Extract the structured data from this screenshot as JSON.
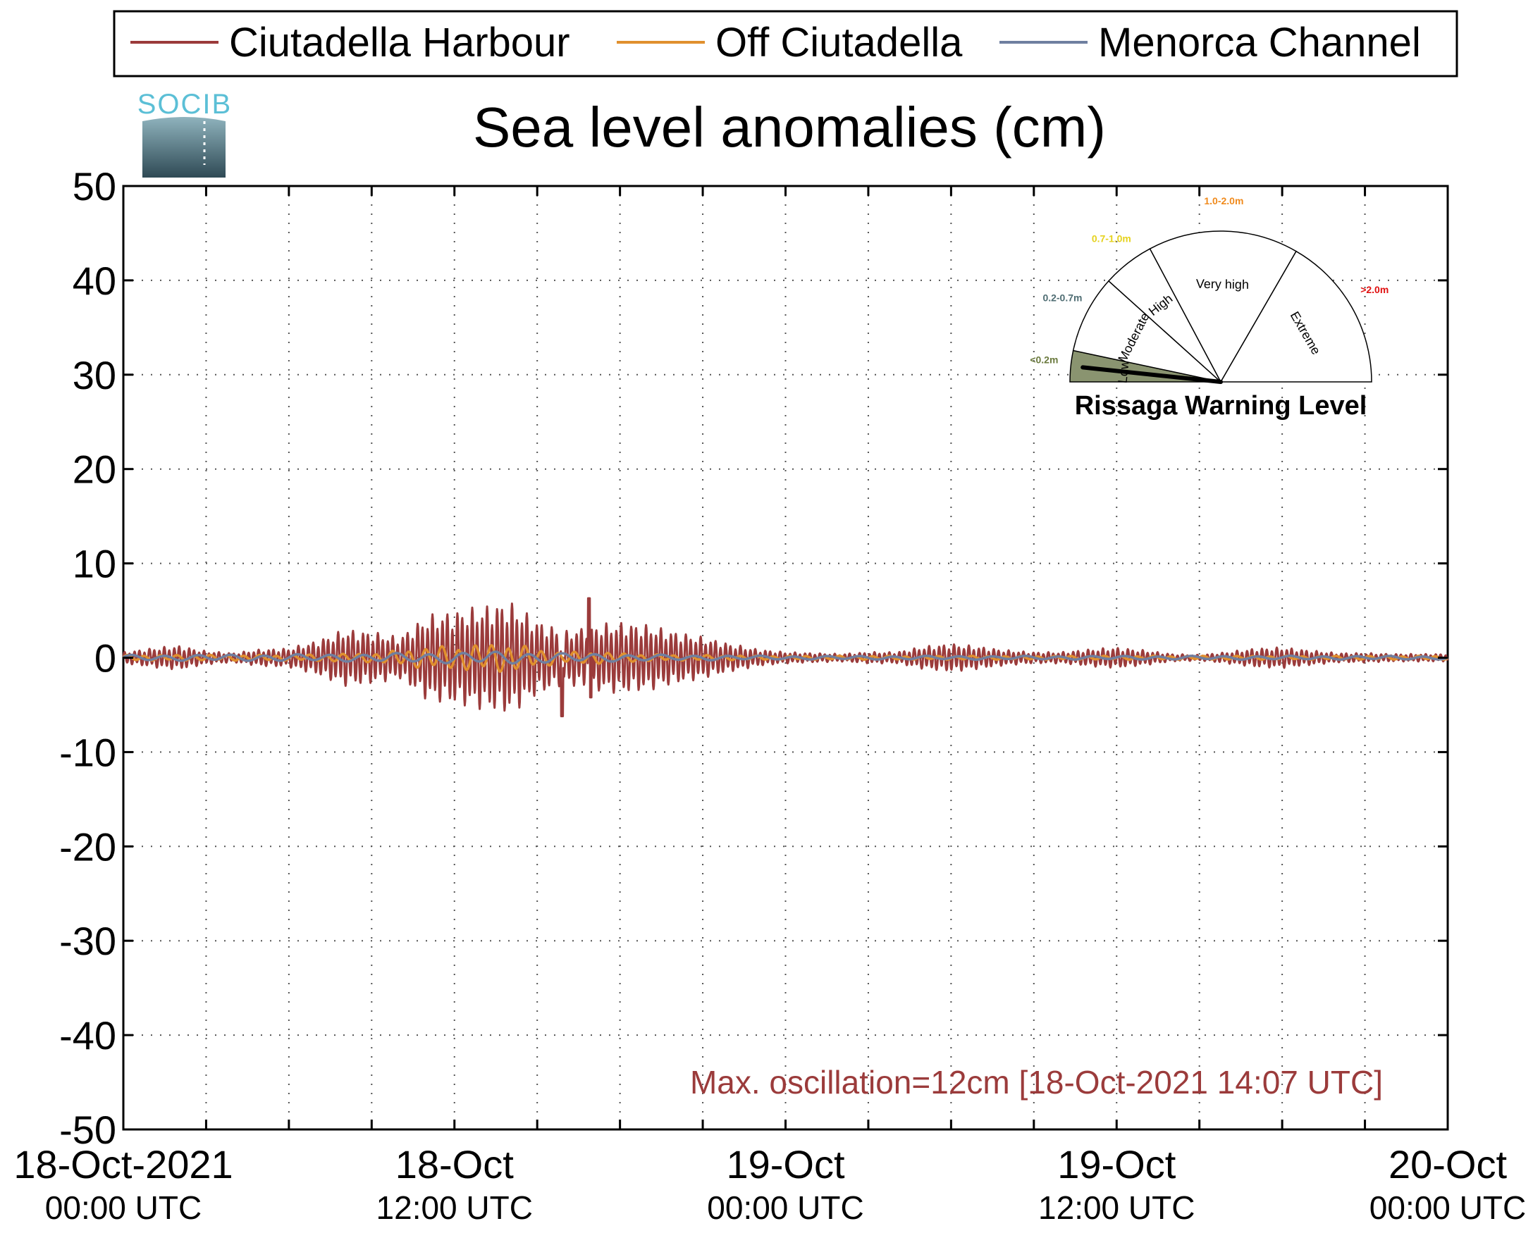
{
  "chart_data": {
    "type": "line",
    "title": "Sea level anomalies (cm)",
    "xlabel": "",
    "ylabel": "",
    "ylim": [
      -50,
      50
    ],
    "y_ticks": [
      50,
      40,
      30,
      20,
      10,
      0,
      -10,
      -20,
      -30,
      -40,
      -50
    ],
    "y_tick_labels": [
      "50",
      "40",
      "30",
      "20",
      "10",
      "0",
      "-10",
      "-20",
      "-30",
      "-40",
      "-50"
    ],
    "xlim_hours": [
      0,
      48
    ],
    "x_tick_labels": [
      {
        "hour": 0,
        "line1": "18-Oct-2021",
        "line2": "00:00 UTC"
      },
      {
        "hour": 12,
        "line1": "18-Oct",
        "line2": "12:00 UTC"
      },
      {
        "hour": 24,
        "line1": "19-Oct",
        "line2": "00:00 UTC"
      },
      {
        "hour": 36,
        "line1": "19-Oct",
        "line2": "12:00 UTC"
      },
      {
        "hour": 48,
        "line1": "20-Oct",
        "line2": "00:00 UTC"
      }
    ],
    "grid": true,
    "legend_position": "top",
    "series": [
      {
        "name": "Ciutadella Harbour",
        "color": "#9b3b3b",
        "amplitude_envelope": {
          "hours": [
            0,
            1,
            2,
            3,
            4,
            5,
            6,
            7,
            8,
            9,
            10,
            11,
            12,
            13,
            14,
            15,
            16,
            17,
            18,
            19,
            20,
            21,
            22,
            23,
            24,
            25,
            26,
            27,
            28,
            29,
            30,
            31,
            32,
            33,
            34,
            35,
            36,
            37,
            38,
            39,
            40,
            41,
            42,
            43,
            44,
            45,
            46,
            47,
            48
          ],
          "values": [
            0.6,
            1.0,
            1.3,
            0.7,
            0.5,
            0.9,
            1.0,
            1.8,
            3.0,
            2.8,
            2.2,
            4.5,
            5.0,
            5.5,
            6.0,
            4.0,
            2.8,
            3.5,
            3.8,
            3.5,
            2.8,
            2.2,
            1.5,
            0.9,
            0.6,
            0.5,
            0.4,
            0.6,
            0.6,
            1.2,
            1.5,
            1.2,
            0.8,
            0.6,
            0.6,
            0.9,
            1.1,
            0.8,
            0.4,
            0.3,
            0.6,
            1.0,
            1.1,
            0.8,
            0.5,
            0.5,
            0.4,
            0.4,
            0.4
          ]
        },
        "oscillation_period_hours": 0.18,
        "extremes": {
          "max": 6.3,
          "min": -6.2
        }
      },
      {
        "name": "Off Ciutadella",
        "color": "#e0902e",
        "amplitude_envelope": {
          "hours": [
            0,
            6,
            9,
            10,
            11,
            12,
            13,
            14,
            15,
            16,
            17,
            18,
            19,
            20,
            24,
            30,
            36,
            42,
            48
          ],
          "values": [
            0.3,
            0.3,
            0.5,
            0.8,
            1.2,
            1.3,
            1.5,
            1.6,
            1.0,
            0.6,
            0.7,
            0.5,
            0.4,
            0.3,
            0.2,
            0.2,
            0.2,
            0.2,
            0.2
          ]
        },
        "oscillation_period_hours": 0.6
      },
      {
        "name": "Menorca Channel",
        "color": "#6f7fa0",
        "amplitude_envelope": {
          "hours": [
            0,
            8,
            12,
            14,
            16,
            20,
            24,
            48
          ],
          "values": [
            0.3,
            0.4,
            0.6,
            0.7,
            0.5,
            0.3,
            0.2,
            0.2
          ]
        },
        "oscillation_period_hours": 1.2
      }
    ],
    "annotation": {
      "text": "Max. oscillation=12cm [18-Oct-2021 14:07 UTC]",
      "color": "#9b3b3b"
    }
  },
  "logo": {
    "text": "SOCIB",
    "text_color": "#5bbfd6"
  },
  "gauge": {
    "title": "Rissaga Warning Level",
    "needle_level": "Low",
    "sectors": [
      {
        "name": "Low",
        "range": "<0.2m",
        "range_color": "#6b7a3e",
        "fill": "#8a9470"
      },
      {
        "name": "Moderate",
        "range": "0.2-0.7m",
        "range_color": "#4f6d73",
        "fill": "#ffffff"
      },
      {
        "name": "High",
        "range": "0.7-1.0m",
        "range_color": "#e6d21e",
        "fill": "#ffffff"
      },
      {
        "name": "Very high",
        "range": "1.0-2.0m",
        "range_color": "#f08a1c",
        "fill": "#ffffff"
      },
      {
        "name": "Extreme",
        "range": ">2.0m",
        "range_color": "#e01010",
        "fill": "#ffffff"
      }
    ]
  }
}
